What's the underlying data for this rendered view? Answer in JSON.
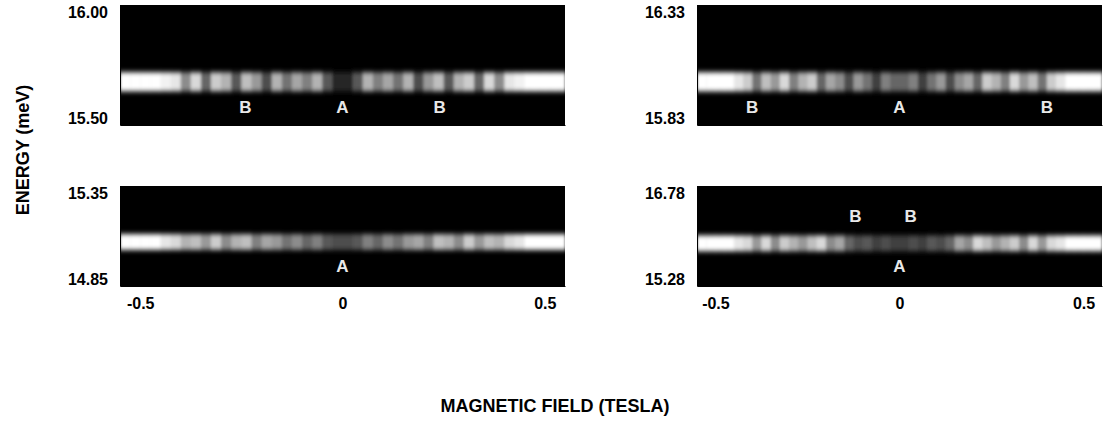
{
  "chart_data": [
    {
      "type": "heatmap",
      "xlim": [
        -0.55,
        0.55
      ],
      "ylim": [
        15.5,
        16.0
      ],
      "yticks": [
        {
          "value": 16.0,
          "label": "16.00"
        },
        {
          "value": 15.5,
          "label": "15.50"
        }
      ],
      "tick_labels": "y",
      "band": [
        15.64,
        15.72
      ],
      "color_range": [
        0,
        1
      ],
      "bins": [
        -0.55,
        -0.525,
        -0.5,
        -0.475,
        -0.45,
        -0.425,
        -0.4,
        -0.375,
        -0.35,
        -0.325,
        -0.3,
        -0.275,
        -0.25,
        -0.225,
        -0.2,
        -0.175,
        -0.15,
        -0.125,
        -0.1,
        -0.075,
        -0.05,
        -0.025,
        0,
        0.025,
        0.05,
        0.075,
        0.1,
        0.125,
        0.15,
        0.175,
        0.2,
        0.225,
        0.25,
        0.275,
        0.3,
        0.325,
        0.35,
        0.375,
        0.4,
        0.425,
        0.45,
        0.475,
        0.5,
        0.525,
        0.55
      ],
      "cells": [
        1,
        1,
        1,
        1,
        0.95,
        0.9,
        0.55,
        0.85,
        0.4,
        0.8,
        0.7,
        0.35,
        0.75,
        0.6,
        0.3,
        0.7,
        0.45,
        0.65,
        0.5,
        0.7,
        0.35,
        0.15,
        0.15,
        0.35,
        0.7,
        0.5,
        0.65,
        0.45,
        0.7,
        0.3,
        0.6,
        0.75,
        0.35,
        0.7,
        0.8,
        0.4,
        0.85,
        0.55,
        0.9,
        0.95,
        1,
        1,
        1,
        1
      ],
      "annotations": [
        {
          "text": "B",
          "x": -0.24,
          "y": 15.57
        },
        {
          "text": "A",
          "x": 0,
          "y": 15.57
        },
        {
          "text": "B",
          "x": 0.24,
          "y": 15.57
        }
      ]
    },
    {
      "type": "heatmap",
      "xlim": [
        -0.55,
        0.55
      ],
      "ylim": [
        15.83,
        16.33
      ],
      "yticks": [
        16.33,
        15.83
      ],
      "tick_labels": "y",
      "band": [
        15.97,
        16.05
      ],
      "color_range": [
        0,
        1
      ],
      "bins": [
        -0.55,
        -0.525,
        -0.5,
        -0.475,
        -0.45,
        -0.425,
        -0.4,
        -0.375,
        -0.35,
        -0.325,
        -0.3,
        -0.275,
        -0.25,
        -0.225,
        -0.2,
        -0.175,
        -0.15,
        -0.125,
        -0.1,
        -0.075,
        -0.05,
        -0.025,
        0,
        0.025,
        0.05,
        0.075,
        0.1,
        0.125,
        0.15,
        0.175,
        0.2,
        0.225,
        0.25,
        0.275,
        0.3,
        0.325,
        0.35,
        0.375,
        0.4,
        0.425,
        0.45,
        0.475,
        0.5,
        0.525,
        0.55
      ],
      "cells": [
        1,
        1,
        1,
        1,
        0.9,
        0.8,
        0.45,
        0.75,
        0.6,
        0.85,
        0.5,
        0.7,
        0.8,
        0.4,
        0.65,
        0.55,
        0.3,
        0.6,
        0.45,
        0.25,
        0.5,
        0.4,
        0.4,
        0.5,
        0.25,
        0.45,
        0.6,
        0.3,
        0.55,
        0.65,
        0.4,
        0.8,
        0.7,
        0.5,
        0.85,
        0.6,
        0.75,
        0.45,
        0.8,
        0.9,
        1,
        1,
        1,
        1
      ],
      "annotations": [
        {
          "text": "B",
          "x": -0.4,
          "y": 15.9
        },
        {
          "text": "A",
          "x": 0,
          "y": 15.9
        },
        {
          "text": "B",
          "x": 0.4,
          "y": 15.9
        }
      ]
    },
    {
      "type": "heatmap",
      "xlim": [
        -0.55,
        0.55
      ],
      "ylim": [
        14.85,
        15.35
      ],
      "yticks": [
        15.35,
        14.85
      ],
      "xticks": [
        -0.5,
        0,
        0.5
      ],
      "band": [
        15.03,
        15.11
      ],
      "color_range": [
        0,
        1
      ],
      "bins": [
        -0.55,
        -0.525,
        -0.5,
        -0.475,
        -0.45,
        -0.425,
        -0.4,
        -0.375,
        -0.35,
        -0.325,
        -0.3,
        -0.275,
        -0.25,
        -0.225,
        -0.2,
        -0.175,
        -0.15,
        -0.125,
        -0.1,
        -0.075,
        -0.05,
        -0.025,
        0,
        0.025,
        0.05,
        0.075,
        0.1,
        0.125,
        0.15,
        0.175,
        0.2,
        0.225,
        0.25,
        0.275,
        0.3,
        0.325,
        0.35,
        0.375,
        0.4,
        0.425,
        0.45,
        0.475,
        0.5,
        0.525,
        0.55
      ],
      "cells": [
        1,
        1,
        1,
        1,
        0.9,
        0.85,
        0.7,
        0.75,
        0.6,
        0.8,
        0.55,
        0.7,
        0.75,
        0.5,
        0.65,
        0.6,
        0.45,
        0.55,
        0.4,
        0.5,
        0.35,
        0.3,
        0.3,
        0.35,
        0.5,
        0.4,
        0.55,
        0.45,
        0.6,
        0.65,
        0.5,
        0.75,
        0.7,
        0.55,
        0.8,
        0.6,
        0.75,
        0.7,
        0.85,
        0.9,
        1,
        1,
        1,
        1
      ],
      "annotations": [
        {
          "text": "A",
          "x": 0,
          "y": 14.94
        }
      ]
    },
    {
      "type": "heatmap",
      "xlim": [
        -0.55,
        0.55
      ],
      "ylim": [
        15.28,
        16.78
      ],
      "yticks": [
        16.78,
        15.28
      ],
      "xticks": [
        -0.5,
        0,
        0.5
      ],
      "band": [
        15.8,
        16.04
      ],
      "color_range": [
        0,
        1
      ],
      "bins": [
        -0.55,
        -0.525,
        -0.5,
        -0.475,
        -0.45,
        -0.425,
        -0.4,
        -0.375,
        -0.35,
        -0.325,
        -0.3,
        -0.275,
        -0.25,
        -0.225,
        -0.2,
        -0.175,
        -0.15,
        -0.125,
        -0.1,
        -0.075,
        -0.05,
        -0.025,
        0,
        0.025,
        0.05,
        0.075,
        0.1,
        0.125,
        0.15,
        0.175,
        0.2,
        0.225,
        0.25,
        0.275,
        0.3,
        0.325,
        0.35,
        0.375,
        0.4,
        0.425,
        0.45,
        0.475,
        0.5,
        0.525,
        0.55
      ],
      "cells": [
        1,
        1,
        1,
        1,
        0.9,
        0.85,
        0.6,
        0.85,
        0.55,
        0.8,
        0.7,
        0.6,
        0.75,
        0.85,
        0.55,
        0.65,
        0.4,
        0.3,
        0.35,
        0.25,
        0.3,
        0.25,
        0.25,
        0.3,
        0.25,
        0.35,
        0.3,
        0.4,
        0.65,
        0.55,
        0.85,
        0.75,
        0.6,
        0.7,
        0.8,
        0.55,
        0.85,
        0.6,
        0.85,
        0.9,
        1,
        1,
        1,
        1
      ],
      "annotations": [
        {
          "text": "B",
          "x": -0.12,
          "y": 16.3
        },
        {
          "text": "B",
          "x": 0.03,
          "y": 16.3
        },
        {
          "text": "A",
          "x": 0,
          "y": 15.55
        }
      ]
    }
  ],
  "xlabel": "MAGNETIC FIELD (TESLA)",
  "ylabel": "ENERGY (meV)"
}
